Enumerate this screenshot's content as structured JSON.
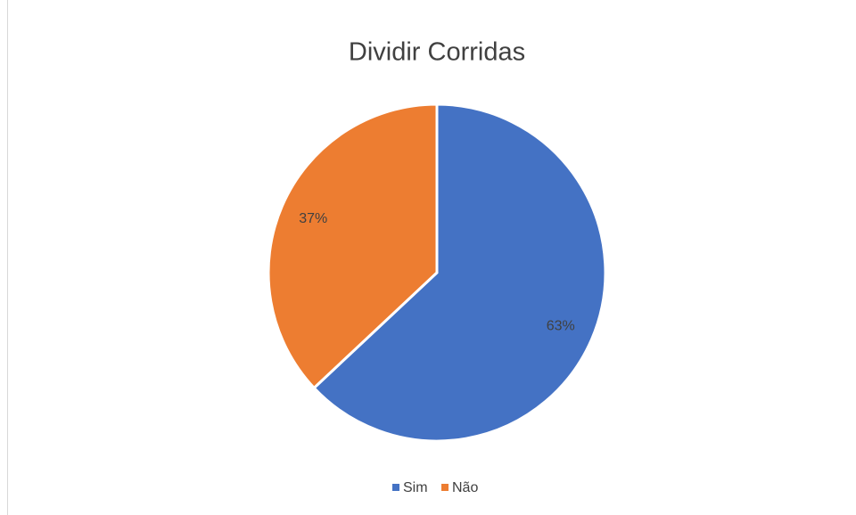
{
  "chart_data": {
    "type": "pie",
    "title": "Dividir Corridas",
    "categories": [
      "Sim",
      "Não"
    ],
    "values": [
      63,
      37
    ],
    "value_labels": [
      "63%",
      "37%"
    ],
    "colors": [
      "#4472c4",
      "#ed7d31"
    ],
    "legend": "bottom"
  }
}
